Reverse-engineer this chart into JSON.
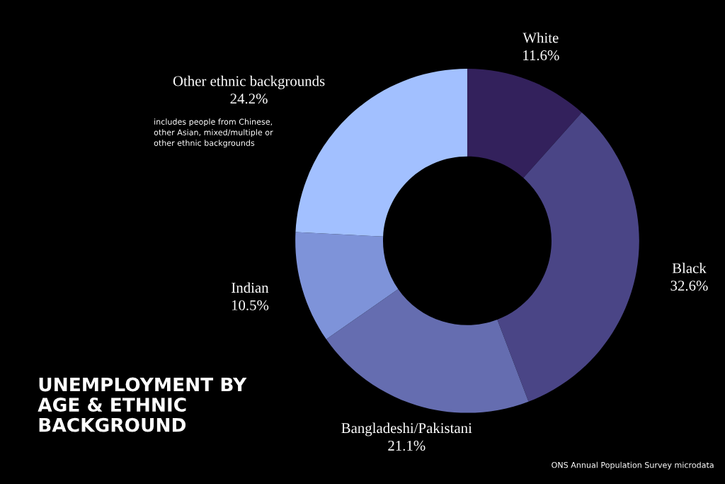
{
  "chart_data": {
    "type": "donut",
    "title": "UNEMPLOYMENT BY\nAGE & ETHNIC\nBACKGROUND",
    "categories": [
      "White",
      "Black",
      "Bangladeshi/Pakistani",
      "Indian",
      "Other ethnic backgrounds"
    ],
    "values": [
      11.6,
      32.6,
      21.1,
      10.5,
      24.2
    ],
    "value_labels": [
      "11.6%",
      "32.6%",
      "21.1%",
      "10.5%",
      "24.2%"
    ],
    "colors": [
      "#33215c",
      "#4a4586",
      "#656db0",
      "#7e93d9",
      "#a2c0ff"
    ],
    "annotations": [
      "includes people from Chinese,\nother Asian, mixed/multiple or\nother ethnic backgrounds",
      "ONS Annual Population Survey microdata"
    ],
    "legend": false
  }
}
